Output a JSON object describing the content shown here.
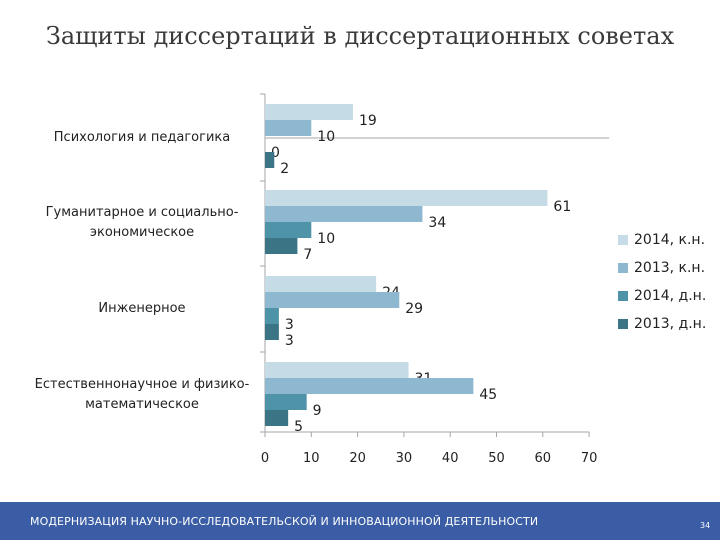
{
  "slide": {
    "title": "Защиты диссертаций в диссертационных советах",
    "footer": "МОДЕРНИЗАЦИЯ НАУЧНО-ИССЛЕДОВАТЕЛЬСКОЙ И ИННОВАЦИОННОЙ ДЕЯТЕЛЬНОСТИ",
    "page_number": "34"
  },
  "chart_data": {
    "type": "bar",
    "orientation": "horizontal",
    "title": "Защиты диссертаций в диссертационных советах",
    "categories": [
      "Психология и педагогика",
      "Гуманитарное и социально-экономическое",
      "Инженерное",
      "Естественнонаучное и физико-математическое"
    ],
    "series": [
      {
        "name": "2014, к.н.",
        "color": "#c5dbe6",
        "values": [
          19,
          61,
          24,
          31
        ]
      },
      {
        "name": "2013, к.н.",
        "color": "#8db8d0",
        "values": [
          10,
          34,
          29,
          45
        ]
      },
      {
        "name": "2014, д.н.",
        "color": "#4f93a8",
        "values": [
          0,
          10,
          3,
          9
        ]
      },
      {
        "name": "2013, д.н.",
        "color": "#3b7585",
        "values": [
          2,
          7,
          3,
          5
        ]
      }
    ],
    "xlim": [
      0,
      70
    ],
    "xticks": [
      0,
      10,
      20,
      30,
      40,
      50,
      60,
      70
    ],
    "legend_position": "right",
    "grid": false
  }
}
